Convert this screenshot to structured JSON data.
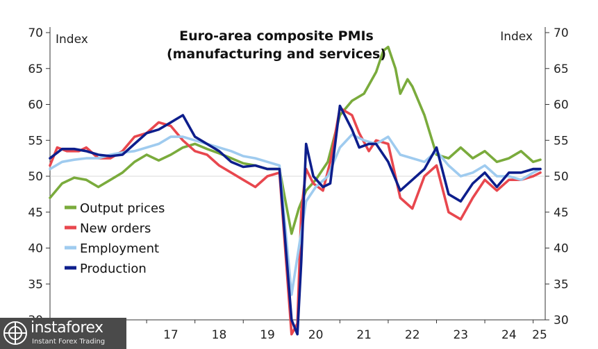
{
  "chart_data": {
    "type": "line",
    "title": [
      "Euro-area composite PMIs",
      "(manufacturing and services)"
    ],
    "ylabel_left": "Index",
    "ylabel_right": "Index",
    "ylim": [
      30,
      70
    ],
    "yticks": [
      30,
      35,
      40,
      45,
      50,
      55,
      60,
      65,
      70
    ],
    "xlim": [
      2015.0,
      2025.25
    ],
    "xticks": [
      "17",
      "18",
      "19",
      "20",
      "21",
      "22",
      "23",
      "24",
      "25"
    ],
    "legend_position": "bottom-left",
    "series": [
      {
        "name": "Output prices",
        "color": "#7aab3c",
        "x": [
          2015.0,
          2015.25,
          2015.5,
          2015.75,
          2016.0,
          2016.25,
          2016.5,
          2016.75,
          2017.0,
          2017.25,
          2017.5,
          2017.75,
          2018.0,
          2018.25,
          2018.5,
          2018.75,
          2019.0,
          2019.25,
          2019.5,
          2019.75,
          2020.0,
          2020.15,
          2020.3,
          2020.5,
          2020.75,
          2021.0,
          2021.25,
          2021.5,
          2021.75,
          2021.9,
          2022.0,
          2022.15,
          2022.25,
          2022.4,
          2022.5,
          2022.75,
          2023.0,
          2023.25,
          2023.5,
          2023.75,
          2024.0,
          2024.25,
          2024.5,
          2024.75,
          2025.0,
          2025.15
        ],
        "values": [
          47.0,
          49.0,
          49.8,
          49.5,
          48.5,
          49.5,
          50.5,
          52.0,
          53.0,
          52.2,
          53.0,
          54.0,
          54.5,
          53.8,
          53.2,
          52.5,
          51.8,
          51.5,
          51.0,
          51.0,
          42.0,
          45.5,
          48.0,
          49.5,
          52.0,
          58.5,
          60.5,
          61.5,
          64.5,
          67.5,
          68.0,
          65.0,
          61.5,
          63.5,
          62.5,
          58.5,
          53.0,
          52.5,
          54.0,
          52.5,
          53.5,
          52.0,
          52.5,
          53.5,
          52.0,
          52.3
        ]
      },
      {
        "name": "New orders",
        "color": "#e8474e",
        "x": [
          2015.0,
          2015.15,
          2015.35,
          2015.6,
          2015.75,
          2016.0,
          2016.25,
          2016.5,
          2016.75,
          2017.0,
          2017.25,
          2017.5,
          2017.75,
          2018.0,
          2018.25,
          2018.5,
          2018.75,
          2019.0,
          2019.25,
          2019.5,
          2019.75,
          2020.0,
          2020.12,
          2020.2,
          2020.3,
          2020.45,
          2020.65,
          2020.8,
          2021.0,
          2021.25,
          2021.4,
          2021.6,
          2021.75,
          2022.0,
          2022.25,
          2022.5,
          2022.75,
          2023.0,
          2023.25,
          2023.5,
          2023.75,
          2024.0,
          2024.25,
          2024.5,
          2024.75,
          2025.0,
          2025.15
        ],
        "values": [
          51.5,
          54.0,
          53.5,
          53.5,
          54.0,
          52.5,
          52.5,
          53.5,
          55.5,
          56.0,
          57.5,
          57.0,
          55.0,
          53.5,
          53.0,
          51.5,
          50.5,
          49.5,
          48.5,
          50.0,
          50.5,
          28.0,
          29.5,
          45.0,
          51.0,
          49.0,
          48.0,
          52.0,
          59.5,
          58.5,
          56.0,
          53.5,
          55.0,
          54.5,
          47.0,
          45.5,
          50.0,
          51.5,
          45.0,
          44.0,
          47.0,
          49.5,
          48.0,
          49.5,
          49.5,
          50.0,
          50.5
        ]
      },
      {
        "name": "Employment",
        "color": "#9fcbef",
        "x": [
          2015.0,
          2015.25,
          2015.5,
          2015.75,
          2016.0,
          2016.25,
          2016.5,
          2016.75,
          2017.0,
          2017.25,
          2017.5,
          2017.75,
          2018.0,
          2018.25,
          2018.5,
          2018.75,
          2019.0,
          2019.25,
          2019.5,
          2019.75,
          2020.0,
          2020.15,
          2020.3,
          2020.5,
          2020.75,
          2021.0,
          2021.25,
          2021.5,
          2021.75,
          2022.0,
          2022.25,
          2022.5,
          2022.75,
          2023.0,
          2023.25,
          2023.5,
          2023.75,
          2024.0,
          2024.25,
          2024.5,
          2024.75,
          2025.0,
          2025.15
        ],
        "values": [
          51.0,
          52.0,
          52.3,
          52.5,
          52.5,
          53.0,
          53.3,
          53.5,
          54.0,
          54.5,
          55.5,
          55.5,
          55.0,
          54.5,
          54.0,
          53.5,
          52.8,
          52.5,
          52.0,
          51.5,
          33.5,
          40.0,
          46.5,
          48.5,
          50.0,
          54.0,
          55.8,
          55.0,
          54.5,
          55.5,
          53.0,
          52.5,
          52.0,
          53.5,
          51.5,
          50.0,
          50.5,
          51.5,
          50.0,
          50.0,
          49.5,
          50.5,
          51.0
        ]
      },
      {
        "name": "Production",
        "color": "#0d1e8c",
        "x": [
          2015.0,
          2015.25,
          2015.5,
          2015.75,
          2016.0,
          2016.25,
          2016.5,
          2016.75,
          2017.0,
          2017.25,
          2017.5,
          2017.75,
          2018.0,
          2018.25,
          2018.5,
          2018.75,
          2019.0,
          2019.25,
          2019.5,
          2019.75,
          2020.0,
          2020.12,
          2020.2,
          2020.3,
          2020.45,
          2020.65,
          2020.8,
          2021.0,
          2021.25,
          2021.4,
          2021.6,
          2021.75,
          2022.0,
          2022.25,
          2022.5,
          2022.75,
          2023.0,
          2023.25,
          2023.5,
          2023.75,
          2024.0,
          2024.25,
          2024.5,
          2024.75,
          2025.0,
          2025.15
        ],
        "values": [
          52.5,
          53.8,
          53.8,
          53.5,
          53.0,
          52.8,
          53.0,
          54.5,
          56.0,
          56.5,
          57.5,
          58.5,
          55.5,
          54.5,
          53.5,
          52.0,
          51.3,
          51.5,
          51.0,
          51.0,
          30.0,
          28.0,
          38.0,
          54.5,
          50.0,
          48.5,
          49.0,
          59.8,
          56.5,
          54.0,
          54.5,
          54.5,
          52.0,
          48.0,
          49.5,
          51.0,
          54.0,
          47.5,
          46.5,
          49.0,
          50.5,
          48.5,
          50.5,
          50.5,
          51.0,
          51.0
        ]
      }
    ]
  },
  "watermark": {
    "brand": "instaforex",
    "tagline": "Instant Forex Trading"
  }
}
